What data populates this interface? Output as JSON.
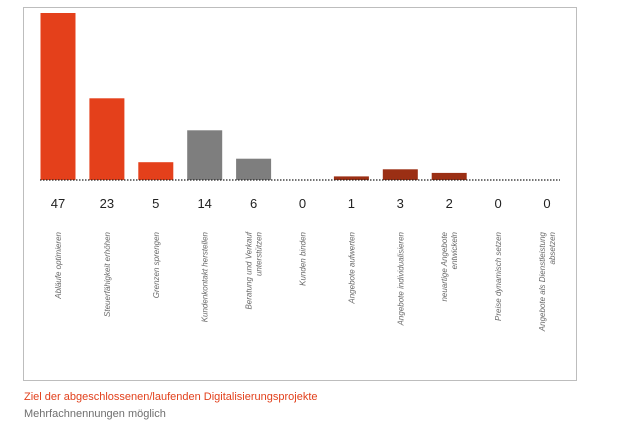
{
  "chart_data": {
    "type": "bar",
    "categories": [
      "Abläufe optimieren",
      "Steuerfähigkeit erhöhen",
      "Grenzen sprengen",
      "Kundenkontakt herstellen",
      "Beratung und Verkauf unterstützen",
      "Kunden binden",
      "Angebote aufwerten",
      "Angebote individualisieren",
      "neuartige Angebote entwickeln",
      "Preise dynamisch setzen",
      "Angebote als Dienstleistung absetzen"
    ],
    "category_lines": [
      [
        "Abläufe optimieren"
      ],
      [
        "Steuerfähigkeit erhöhen"
      ],
      [
        "Grenzen sprengen"
      ],
      [
        "Kundenkontakt herstellen"
      ],
      [
        "Beratung und Verkauf",
        "unterstützen"
      ],
      [
        "Kunden binden"
      ],
      [
        "Angebote aufwerten"
      ],
      [
        "Angebote individualisieren"
      ],
      [
        "neuartige Angebote",
        "entwickeln"
      ],
      [
        "Preise dynamisch setzen"
      ],
      [
        "Angebote als Dienstleistung",
        "absetzen"
      ]
    ],
    "values": [
      47,
      23,
      5,
      14,
      6,
      0,
      1,
      3,
      2,
      0,
      0
    ],
    "bar_colors": [
      "#e4401b",
      "#e4401b",
      "#e4401b",
      "#7e7e7e",
      "#7e7e7e",
      "#7e7e7e",
      "#9b2f14",
      "#9b2f14",
      "#9b2f14",
      "#9b2f14",
      "#9b2f14"
    ],
    "ylim": [
      0,
      47
    ],
    "grid": false,
    "baseline_style": "dotted"
  },
  "caption": {
    "title": "Ziel der abgeschlossenen/laufenden Digitalisierungsprojekte",
    "subtitle": "Mehrfachnennungen möglich"
  }
}
